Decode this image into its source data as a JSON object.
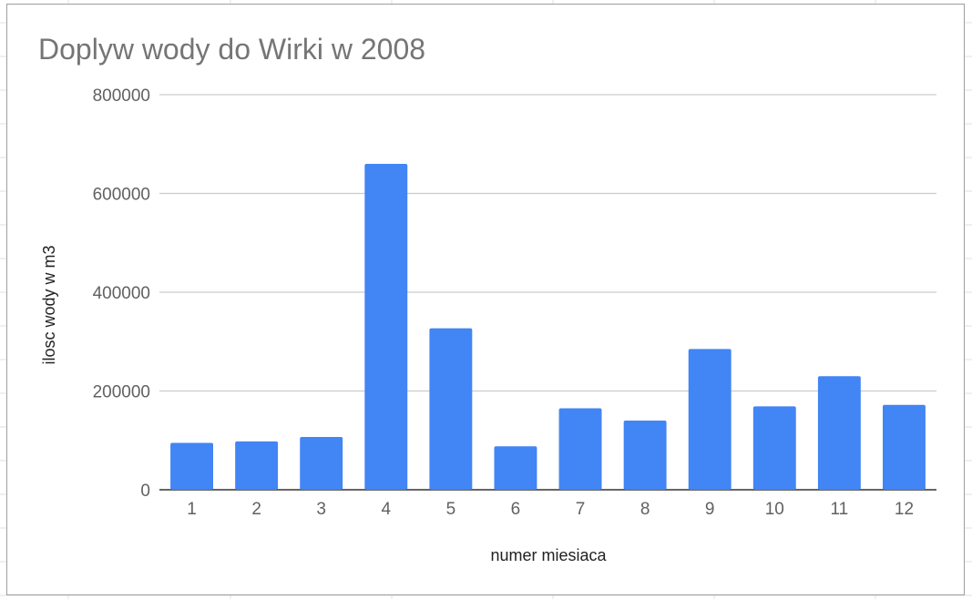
{
  "colors": {
    "bar": "#4285f4",
    "gridline": "#cccccc",
    "baseline": "#333333",
    "title": "#757575",
    "tick_label": "#616161",
    "axis_title": "#222222",
    "frame_border": "#9e9e9e",
    "sheet_gridline": "#e0e0e0"
  },
  "chart_data": {
    "type": "bar",
    "title": "Doplyw wody do Wirki w 2008",
    "xlabel": "numer miesiaca",
    "ylabel": "ilosc wody w m3",
    "categories": [
      "1",
      "2",
      "3",
      "4",
      "5",
      "6",
      "7",
      "8",
      "9",
      "10",
      "11",
      "12"
    ],
    "series": [
      {
        "values": [
          95000,
          98000,
          107000,
          660000,
          327000,
          88000,
          165000,
          140000,
          285000,
          169000,
          230000,
          172000
        ]
      }
    ],
    "ylim": [
      0,
      800000
    ],
    "yticks": [
      "0",
      "200000",
      "400000",
      "600000",
      "800000"
    ],
    "grid": true,
    "legend": "none"
  }
}
